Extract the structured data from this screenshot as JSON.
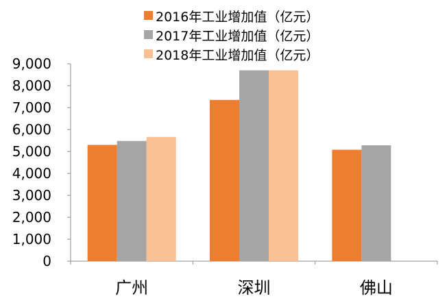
{
  "chart_data": {
    "type": "bar",
    "categories": [
      "广州",
      "深圳",
      "佛山"
    ],
    "series": [
      {
        "name": "2016年工业增加值（亿元）",
        "values": [
          5300,
          7350,
          5080
        ],
        "color": "#ED7D31"
      },
      {
        "name": "2017年工业增加值（亿元）",
        "values": [
          5480,
          8700,
          5280
        ],
        "color": "#A5A5A5"
      },
      {
        "name": "2018年工业增加值（亿元）",
        "values": [
          5660,
          8700,
          null
        ],
        "color": "#F8C195"
      }
    ],
    "ylim": [
      0,
      9000
    ],
    "yticks": [
      0,
      1000,
      2000,
      3000,
      4000,
      5000,
      6000,
      7000,
      8000,
      9000
    ],
    "ytick_labels": [
      "0",
      "1,000",
      "2,000",
      "3,000",
      "4,000",
      "5,000",
      "6,000",
      "7,000",
      "8,000",
      "9,000"
    ],
    "legend_position": "top",
    "grid": false
  }
}
